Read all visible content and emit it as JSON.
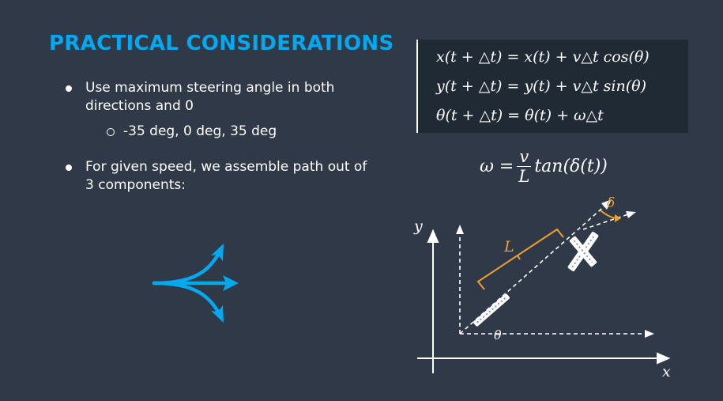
{
  "slide": {
    "title": "PRACTICAL CONSIDERATIONS",
    "bullets": [
      {
        "text": "Use maximum steering angle in both directions and 0",
        "sub": "-35 deg, 0 deg, 35 deg"
      },
      {
        "text": "For given speed, we assemble path out of 3 components:"
      }
    ]
  },
  "equations": {
    "line1": "x(t + △t) = x(t) + v△t cos(θ)",
    "line2": "y(t + △t) = y(t) + v△t sin(θ)",
    "line3": "θ(t + △t) = θ(t) + ω△t",
    "omega_lhs": "ω =",
    "omega_num": "v",
    "omega_den": "L",
    "omega_rhs": "tan(δ(t))"
  },
  "diagram": {
    "y_label": "y",
    "x_label": "x",
    "length_label": "L",
    "angle_label": "δ",
    "heading_label": "θ"
  },
  "icons": {
    "three_path_arrows": "three-way-split-arrow-icon"
  },
  "colors": {
    "background": "#2f3947",
    "title": "#02a8f0",
    "accent_orange": "#f0a030",
    "equation_box": "#202a35",
    "arrow_icon": "#02a8f0"
  }
}
